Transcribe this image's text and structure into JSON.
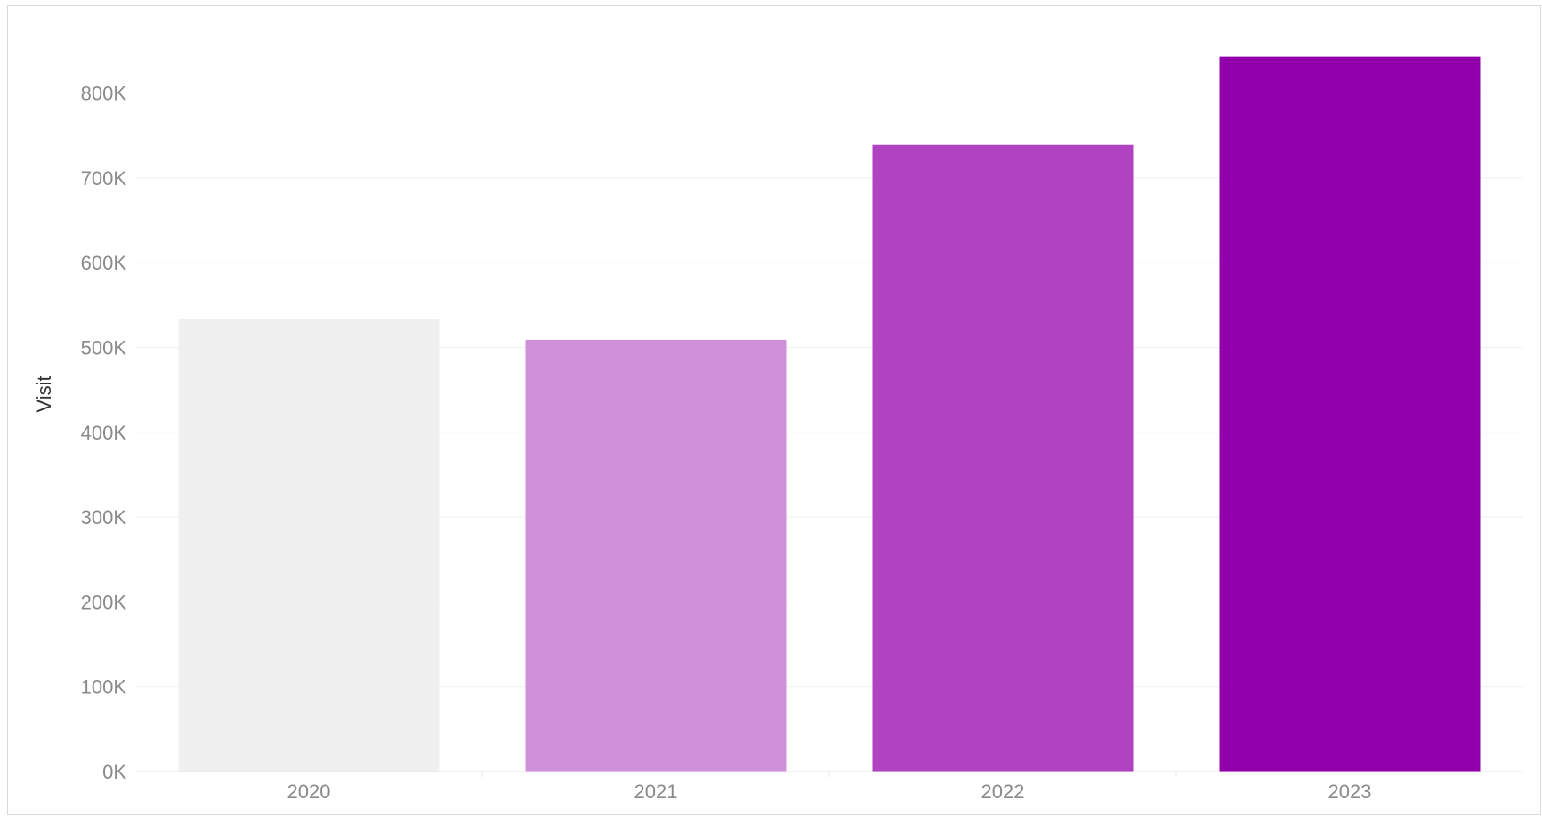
{
  "chart_data": {
    "type": "bar",
    "title": "",
    "xlabel": "",
    "ylabel": "Visit",
    "categories": [
      "2020",
      "2021",
      "2022",
      "2023"
    ],
    "values": [
      533000,
      509000,
      739000,
      843000
    ],
    "ylim": [
      0,
      850000
    ],
    "yticks": [
      0,
      100000,
      200000,
      300000,
      400000,
      500000,
      600000,
      700000,
      800000
    ],
    "ytick_labels": [
      "0K",
      "100K",
      "200K",
      "300K",
      "400K",
      "500K",
      "600K",
      "700K",
      "800K"
    ],
    "colors": [
      "#f0f0f0",
      "#cf91da",
      "#b143c3",
      "#9100ab"
    ],
    "grid": true,
    "legend": "none"
  }
}
